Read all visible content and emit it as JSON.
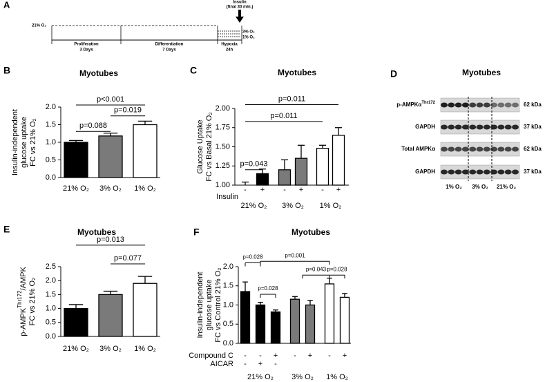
{
  "timeline": {
    "letter": "A",
    "baseline": "21% O₂",
    "insulin": [
      "Insulin",
      "(final 30 min.)"
    ],
    "hypoxia_levels": [
      "3% O₂",
      "1% O₂"
    ],
    "phases": [
      {
        "name": "Proliferation",
        "duration": "3 Days"
      },
      {
        "name": "Differentiation",
        "duration": "7 Days"
      },
      {
        "name": "Hypoxia",
        "duration": "24h"
      }
    ]
  },
  "blot": {
    "letter": "D",
    "title": "Myotubes",
    "rows": [
      {
        "label": "p-AMPKα",
        "sup": "Thr172",
        "size": "62 kDa"
      },
      {
        "label": "GAPDH",
        "size": "37 kDa"
      },
      {
        "label": "Total AMPKα",
        "size": "62 kDa"
      },
      {
        "label": "GAPDH",
        "size": "37 kDa"
      }
    ],
    "lanes": [
      "1% O₂",
      "3% O₂",
      "21% O₂"
    ]
  },
  "chart_data": [
    {
      "type": "bar",
      "panel": "B",
      "title": "Myotubes",
      "ylabel": [
        "Insulin-independent",
        "glucose uptake",
        "FC vs 21% O₂"
      ],
      "categories": [
        "21% O₂",
        "3% O₂",
        "1% O₂"
      ],
      "values": [
        1.0,
        1.18,
        1.5
      ],
      "errors": [
        0.05,
        0.08,
        0.1
      ],
      "colors": [
        "#000000",
        "#7a7a7a",
        "#ffffff"
      ],
      "ylim": [
        0,
        2.0
      ],
      "yticks": [
        {
          "value": 0,
          "label": "0.0"
        },
        0.5,
        {
          "value": 1,
          "label": "1.0"
        },
        1.5,
        {
          "value": 2,
          "label": "2.0"
        }
      ],
      "annotations": [
        "p=0.088",
        "p<0.001",
        "p=0.019"
      ]
    },
    {
      "type": "bar",
      "panel": "C",
      "title": "Myotubes",
      "ylabel": [
        "Glucose Uptake",
        "FC vs Basal 21% O₂"
      ],
      "values": [
        1.0,
        1.15,
        1.2,
        1.35,
        1.48,
        1.65
      ],
      "errors": [
        0.04,
        0.06,
        0.13,
        0.17,
        0.04,
        0.1
      ],
      "colors": [
        "#000000",
        "#000000",
        "#7a7a7a",
        "#7a7a7a",
        "#ffffff",
        "#ffffff"
      ],
      "rows": [
        {
          "name": "Insulin",
          "labels": [
            "-",
            "+",
            "-",
            "+",
            "-",
            "+"
          ]
        }
      ],
      "groups": [
        "21% O₂",
        "3% O₂",
        "1% O₂"
      ],
      "ylim": [
        1.0,
        2.0
      ],
      "yticks": [
        {
          "value": 1,
          "label": "1.00"
        },
        1.25,
        {
          "value": 1.5,
          "label": "1.50"
        },
        1.75,
        {
          "value": 2,
          "label": "2.00"
        }
      ],
      "annotations": [
        "p=0.043",
        "p=0.011",
        "p=0.011"
      ]
    },
    {
      "type": "bar",
      "panel": "E",
      "title": "Myotubes",
      "ylabel": [
        {
          "text": "p-AMPK",
          "sup": "Thr172",
          "rest": "/AMPK"
        },
        "FC vs 21% O₂"
      ],
      "categories": [
        "21% O₂",
        "3% O₂",
        "1% O₂"
      ],
      "values": [
        1.0,
        1.5,
        1.9
      ],
      "errors": [
        0.14,
        0.12,
        0.25
      ],
      "colors": [
        "#000000",
        "#7a7a7a",
        "#ffffff"
      ],
      "ylim": [
        0,
        2.5
      ],
      "yticks": [
        {
          "value": 0,
          "label": "0.0"
        },
        0.5,
        {
          "value": 1,
          "label": "1.0"
        },
        1.5,
        {
          "value": 2,
          "label": "2.0"
        },
        2.5
      ],
      "annotations": [
        "p=0.013",
        "p=0.077"
      ]
    },
    {
      "type": "bar",
      "panel": "F",
      "title": "Myotubes",
      "ylabel": [
        "Insulin-independent",
        "glucose uptake",
        "FC vs Control 21% O₂"
      ],
      "values": [
        1.35,
        1.0,
        0.82,
        1.15,
        1.0,
        1.55,
        1.2
      ],
      "errors": [
        0.25,
        0.07,
        0.05,
        0.07,
        0.12,
        0.15,
        0.1
      ],
      "colors": [
        "#000000",
        "#000000",
        "#000000",
        "#7a7a7a",
        "#7a7a7a",
        "#ffffff",
        "#ffffff"
      ],
      "rows": [
        {
          "name": "Compound C",
          "labels": [
            "-",
            "-",
            "+",
            "-",
            "+",
            "-",
            "+"
          ]
        },
        {
          "name": "AICAR",
          "labels": [
            "-",
            "+",
            "-",
            null,
            null,
            null,
            null
          ]
        }
      ],
      "groups": [
        "21% O₂",
        "3% O₂",
        "1% O₂"
      ],
      "ylim": [
        0,
        2.0
      ],
      "yticks": [
        {
          "value": 0,
          "label": "0.0"
        },
        0.5,
        {
          "value": 1,
          "label": "1.0"
        },
        1.5,
        {
          "value": 2,
          "label": "2.0"
        }
      ],
      "annotations": [
        "p=0.028",
        "p=0.001",
        "p=0.028",
        "p=0.043",
        "p=0.028"
      ]
    }
  ]
}
